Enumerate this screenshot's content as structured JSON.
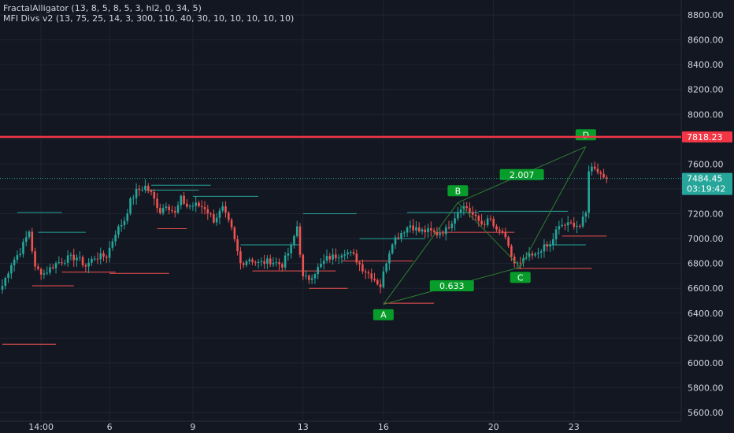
{
  "indicators": [
    "FractalAlligator (13, 8, 5, 8, 5, 3, hl2, 0, 34, 5)",
    "MFI Divs v2 (13, 75, 25, 14, 3, 300, 110, 40, 30, 10, 10, 10, 10, 10)"
  ],
  "price_labels": {
    "resistance": "7818.23",
    "last_price": "7484.45",
    "countdown": "03:19:42"
  },
  "colors": {
    "background": "#131722",
    "grid": "#1f2430",
    "up": "#26a69a",
    "down": "#ef5350",
    "resistance": "#f23645",
    "pattern": "#089d2a",
    "pattern_line": "#2e7d32"
  },
  "chart_data": {
    "type": "candlestick",
    "y_ticks": [
      "8800.00",
      "8600.00",
      "8400.00",
      "8200.00",
      "8000.00",
      "7800.00",
      "7600.00",
      "7400.00",
      "7200.00",
      "7000.00",
      "6800.00",
      "6600.00",
      "6400.00",
      "6200.00",
      "6000.00",
      "5800.00",
      "5600.00"
    ],
    "ylim": [
      5560,
      8900
    ],
    "x_ticks": [
      {
        "label": "14:00",
        "index": 13
      },
      {
        "label": "6",
        "index": 36
      },
      {
        "label": "9",
        "index": 64
      },
      {
        "label": "13",
        "index": 101
      },
      {
        "label": "16",
        "index": 128
      },
      {
        "label": "20",
        "index": 165
      },
      {
        "label": "23",
        "index": 192
      }
    ],
    "n_candles": 204,
    "resistance_level": 7818.23,
    "last_price": 7484.45,
    "pattern": {
      "points": [
        {
          "name": "A",
          "index": 128,
          "price": 6470
        },
        {
          "name": "B",
          "index": 153,
          "price": 7290
        },
        {
          "name": "C",
          "index": 174,
          "price": 6770
        },
        {
          "name": "D",
          "index": 196,
          "price": 7740
        }
      ],
      "ratios": [
        {
          "text": "0.633",
          "at": "AC"
        },
        {
          "text": "2.007",
          "at": "BD"
        }
      ]
    },
    "price_path": [
      [
        0,
        6620
      ],
      [
        3,
        6800
      ],
      [
        6,
        6900
      ],
      [
        9,
        7060
      ],
      [
        11,
        6760
      ],
      [
        14,
        6720
      ],
      [
        18,
        6800
      ],
      [
        22,
        6840
      ],
      [
        25,
        6850
      ],
      [
        28,
        6780
      ],
      [
        31,
        6850
      ],
      [
        35,
        6860
      ],
      [
        38,
        7050
      ],
      [
        41,
        7150
      ],
      [
        43,
        7300
      ],
      [
        45,
        7380
      ],
      [
        48,
        7420
      ],
      [
        50,
        7360
      ],
      [
        53,
        7220
      ],
      [
        55,
        7280
      ],
      [
        58,
        7200
      ],
      [
        60,
        7320
      ],
      [
        62,
        7260
      ],
      [
        65,
        7270
      ],
      [
        68,
        7250
      ],
      [
        71,
        7150
      ],
      [
        74,
        7240
      ],
      [
        77,
        7070
      ],
      [
        80,
        6800
      ],
      [
        83,
        6840
      ],
      [
        86,
        6800
      ],
      [
        90,
        6820
      ],
      [
        94,
        6790
      ],
      [
        97,
        6930
      ],
      [
        99,
        7100
      ],
      [
        101,
        6680
      ],
      [
        103,
        6680
      ],
      [
        106,
        6760
      ],
      [
        109,
        6840
      ],
      [
        112,
        6860
      ],
      [
        115,
        6900
      ],
      [
        118,
        6860
      ],
      [
        121,
        6760
      ],
      [
        124,
        6700
      ],
      [
        127,
        6620
      ],
      [
        129,
        6820
      ],
      [
        131,
        6980
      ],
      [
        134,
        7050
      ],
      [
        137,
        7110
      ],
      [
        140,
        7060
      ],
      [
        143,
        7060
      ],
      [
        146,
        7040
      ],
      [
        149,
        7070
      ],
      [
        152,
        7180
      ],
      [
        154,
        7260
      ],
      [
        156,
        7250
      ],
      [
        159,
        7160
      ],
      [
        161,
        7120
      ],
      [
        164,
        7150
      ],
      [
        166,
        7050
      ],
      [
        168,
        7050
      ],
      [
        170,
        6920
      ],
      [
        172,
        6800
      ],
      [
        174,
        6790
      ],
      [
        176,
        6850
      ],
      [
        179,
        6860
      ],
      [
        181,
        6920
      ],
      [
        184,
        6940
      ],
      [
        186,
        7060
      ],
      [
        188,
        7110
      ],
      [
        190,
        7110
      ],
      [
        192,
        7120
      ],
      [
        194,
        7100
      ],
      [
        196,
        7200
      ],
      [
        197,
        7560
      ],
      [
        199,
        7580
      ],
      [
        201,
        7520
      ],
      [
        203,
        7484
      ]
    ]
  }
}
